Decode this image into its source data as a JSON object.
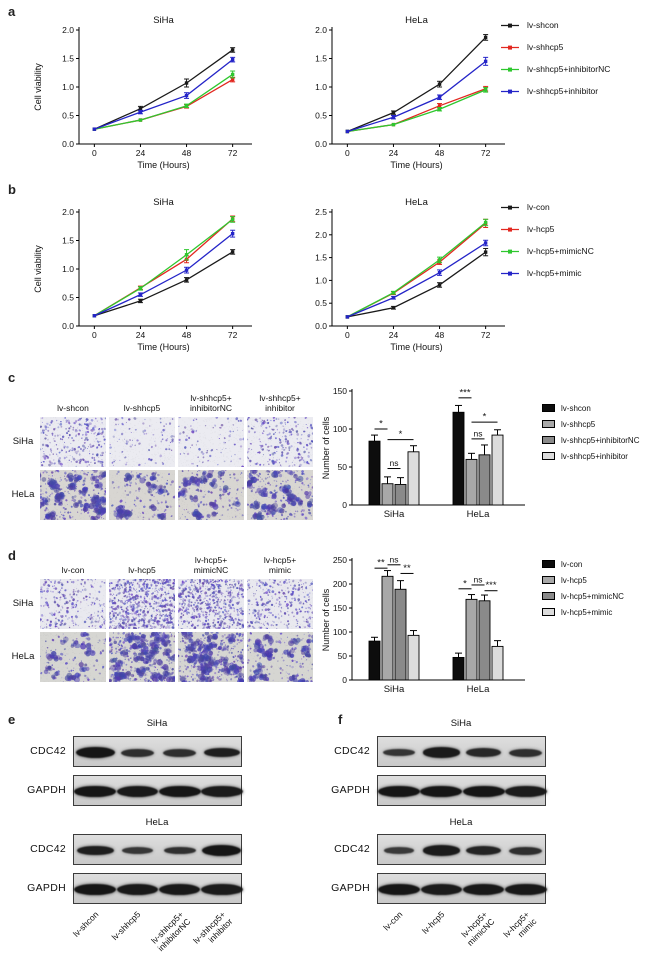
{
  "panels": {
    "a": {
      "label": "a"
    },
    "b": {
      "label": "b"
    },
    "c": {
      "label": "c"
    },
    "d": {
      "label": "d"
    },
    "e": {
      "label": "e"
    },
    "f": {
      "label": "f"
    }
  },
  "chart_data": [
    {
      "id": "a_siha",
      "type": "line",
      "title": "SiHa",
      "xlabel": "Time (Hours)",
      "ylabel": "Cell viability",
      "x": [
        0,
        24,
        48,
        72
      ],
      "xlim": [
        -8,
        80
      ],
      "ylim": [
        0,
        2.0
      ],
      "yticks": [
        0.0,
        0.5,
        1.0,
        1.5,
        2.0
      ],
      "series": [
        {
          "name": "lv-shcon",
          "color": "#1a1a1a",
          "values": [
            0.26,
            0.62,
            1.07,
            1.65
          ],
          "err": [
            0.02,
            0.04,
            0.07,
            0.04
          ]
        },
        {
          "name": "lv-shhcp5",
          "color": "#e22820",
          "values": [
            0.26,
            0.42,
            0.66,
            1.13
          ],
          "err": [
            0.02,
            0.02,
            0.03,
            0.04
          ]
        },
        {
          "name": "lv-shhcp5+inhibitorNC",
          "color": "#2ec72e",
          "values": [
            0.26,
            0.42,
            0.67,
            1.22
          ],
          "err": [
            0.02,
            0.02,
            0.03,
            0.06
          ]
        },
        {
          "name": "lv-shhcp5+inhibitor",
          "color": "#2424c8",
          "values": [
            0.26,
            0.56,
            0.85,
            1.48
          ],
          "err": [
            0.02,
            0.03,
            0.05,
            0.04
          ]
        }
      ]
    },
    {
      "id": "a_hela",
      "type": "line",
      "title": "HeLa",
      "xlabel": "Time (Hours)",
      "ylabel": "",
      "x": [
        0,
        24,
        48,
        72
      ],
      "xlim": [
        -8,
        80
      ],
      "ylim": [
        0,
        2.0
      ],
      "yticks": [
        0.0,
        0.5,
        1.0,
        1.5,
        2.0
      ],
      "series": [
        {
          "name": "lv-shcon",
          "color": "#1a1a1a",
          "values": [
            0.22,
            0.55,
            1.05,
            1.87
          ],
          "err": [
            0.02,
            0.03,
            0.05,
            0.05
          ]
        },
        {
          "name": "lv-shhcp5",
          "color": "#e22820",
          "values": [
            0.22,
            0.34,
            0.67,
            0.97
          ],
          "err": [
            0.02,
            0.02,
            0.04,
            0.04
          ]
        },
        {
          "name": "lv-shhcp5+inhibitorNC",
          "color": "#2ec72e",
          "values": [
            0.22,
            0.34,
            0.61,
            0.95
          ],
          "err": [
            0.02,
            0.02,
            0.03,
            0.04
          ]
        },
        {
          "name": "lv-shhcp5+inhibitor",
          "color": "#2424c8",
          "values": [
            0.22,
            0.47,
            0.82,
            1.45
          ],
          "err": [
            0.02,
            0.03,
            0.04,
            0.07
          ]
        }
      ]
    },
    {
      "id": "b_siha",
      "type": "line",
      "title": "SiHa",
      "xlabel": "Time (Hours)",
      "ylabel": "Cell viability",
      "x": [
        0,
        24,
        48,
        72
      ],
      "xlim": [
        -8,
        80
      ],
      "ylim": [
        0,
        2.0
      ],
      "yticks": [
        0.0,
        0.5,
        1.0,
        1.5,
        2.0
      ],
      "series": [
        {
          "name": "lv-con",
          "color": "#1a1a1a",
          "values": [
            0.18,
            0.44,
            0.81,
            1.3
          ],
          "err": [
            0.02,
            0.03,
            0.04,
            0.04
          ]
        },
        {
          "name": "lv-hcp5",
          "color": "#e22820",
          "values": [
            0.18,
            0.67,
            1.17,
            1.88
          ],
          "err": [
            0.02,
            0.03,
            0.06,
            0.05
          ]
        },
        {
          "name": "lv-hcp5+mimicNC",
          "color": "#2ec72e",
          "values": [
            0.18,
            0.66,
            1.25,
            1.87
          ],
          "err": [
            0.02,
            0.03,
            0.09,
            0.05
          ]
        },
        {
          "name": "lv-hcp5+mimic",
          "color": "#2424c8",
          "values": [
            0.18,
            0.55,
            0.98,
            1.62
          ],
          "err": [
            0.02,
            0.03,
            0.05,
            0.06
          ]
        }
      ]
    },
    {
      "id": "b_hela",
      "type": "line",
      "title": "HeLa",
      "xlabel": "Time (Hours)",
      "ylabel": "",
      "x": [
        0,
        24,
        48,
        72
      ],
      "xlim": [
        -8,
        80
      ],
      "ylim": [
        0,
        2.5
      ],
      "yticks": [
        0.0,
        0.5,
        1.0,
        1.5,
        2.0,
        2.5
      ],
      "series": [
        {
          "name": "lv-con",
          "color": "#1a1a1a",
          "values": [
            0.2,
            0.4,
            0.9,
            1.62
          ],
          "err": [
            0.02,
            0.03,
            0.05,
            0.08
          ]
        },
        {
          "name": "lv-hcp5",
          "color": "#e22820",
          "values": [
            0.2,
            0.72,
            1.4,
            2.25
          ],
          "err": [
            0.02,
            0.03,
            0.05,
            0.09
          ]
        },
        {
          "name": "lv-hcp5+mimicNC",
          "color": "#2ec72e",
          "values": [
            0.2,
            0.73,
            1.45,
            2.27
          ],
          "err": [
            0.02,
            0.03,
            0.06,
            0.07
          ]
        },
        {
          "name": "lv-hcp5+mimic",
          "color": "#2424c8",
          "values": [
            0.2,
            0.62,
            1.17,
            1.82
          ],
          "err": [
            0.02,
            0.03,
            0.06,
            0.06
          ]
        }
      ]
    },
    {
      "id": "c_bars",
      "type": "bar",
      "title": "",
      "xlabel": "",
      "ylabel": "Number of cells",
      "categories": [
        "SiHa",
        "HeLa"
      ],
      "ylim": [
        0,
        150
      ],
      "yticks": [
        0,
        50,
        100,
        150
      ],
      "series": [
        {
          "name": "lv-shcon",
          "color": "#0d0d0d",
          "values": [
            84,
            122
          ],
          "err": [
            8,
            9
          ]
        },
        {
          "name": "lv-shhcp5",
          "color": "#a8a8a8",
          "values": [
            28,
            60
          ],
          "err": [
            9,
            8
          ]
        },
        {
          "name": "lv-shhcp5+inhibitorNC",
          "color": "#8a8a8a",
          "values": [
            27,
            66
          ],
          "err": [
            9,
            13
          ]
        },
        {
          "name": "lv-shhcp5+inhibitor",
          "color": "#dcdcdc",
          "values": [
            70,
            92
          ],
          "err": [
            8,
            7
          ]
        }
      ],
      "significance": [
        {
          "cat": 0,
          "from": 0,
          "to": 1,
          "label": "*",
          "y": 100
        },
        {
          "cat": 0,
          "from": 1,
          "to": 2,
          "label": "ns",
          "y": 48
        },
        {
          "cat": 0,
          "from": 1,
          "to": 3,
          "label": "*",
          "y": 86
        },
        {
          "cat": 1,
          "from": 0,
          "to": 1,
          "label": "***",
          "y": 141
        },
        {
          "cat": 1,
          "from": 1,
          "to": 2,
          "label": "ns",
          "y": 87
        },
        {
          "cat": 1,
          "from": 1,
          "to": 3,
          "label": "*",
          "y": 109
        }
      ]
    },
    {
      "id": "d_bars",
      "type": "bar",
      "title": "",
      "xlabel": "",
      "ylabel": "Number of cells",
      "categories": [
        "SiHa",
        "HeLa"
      ],
      "ylim": [
        0,
        250
      ],
      "yticks": [
        0,
        50,
        100,
        150,
        200,
        250
      ],
      "series": [
        {
          "name": "lv-con",
          "color": "#0d0d0d",
          "values": [
            81,
            47
          ],
          "err": [
            8,
            9
          ]
        },
        {
          "name": "lv-hcp5",
          "color": "#a8a8a8",
          "values": [
            216,
            168
          ],
          "err": [
            12,
            10
          ]
        },
        {
          "name": "lv-hcp5+mimicNC",
          "color": "#8a8a8a",
          "values": [
            189,
            165
          ],
          "err": [
            18,
            12
          ]
        },
        {
          "name": "lv-hcp5+mimic",
          "color": "#dcdcdc",
          "values": [
            93,
            70
          ],
          "err": [
            10,
            12
          ]
        }
      ],
      "significance": [
        {
          "cat": 0,
          "from": 0,
          "to": 1,
          "label": "**",
          "y": 233
        },
        {
          "cat": 0,
          "from": 1,
          "to": 2,
          "label": "ns",
          "y": 240
        },
        {
          "cat": 0,
          "from": 2,
          "to": 3,
          "label": "**",
          "y": 222
        },
        {
          "cat": 1,
          "from": 0,
          "to": 1,
          "label": "*",
          "y": 190
        },
        {
          "cat": 1,
          "from": 1,
          "to": 2,
          "label": "ns",
          "y": 198
        },
        {
          "cat": 1,
          "from": 2,
          "to": 3,
          "label": "***",
          "y": 186
        }
      ]
    }
  ],
  "assays": {
    "c": {
      "row_labels": [
        "SiHa",
        "HeLa"
      ],
      "col_labels": [
        "lv-shcon",
        "lv-shhcp5",
        "lv-shhcp5+\ninhibitorNC",
        "lv-shhcp5+\ninhibitor"
      ],
      "cell_counts": [
        [
          84,
          28,
          27,
          70
        ],
        [
          122,
          60,
          66,
          92
        ]
      ],
      "row_styles": [
        "sparse",
        "blob"
      ],
      "row_bg": [
        "#ebebf1",
        "#d8d6d2"
      ],
      "stain_color": "#4b48b8"
    },
    "d": {
      "row_labels": [
        "SiHa",
        "HeLa"
      ],
      "col_labels": [
        "lv-con",
        "lv-hcp5",
        "lv-hcp5+\nmimicNC",
        "lv-hcp5+\nmimic"
      ],
      "cell_counts": [
        [
          81,
          216,
          189,
          93
        ],
        [
          47,
          168,
          165,
          70
        ]
      ],
      "row_styles": [
        "sparse",
        "blob"
      ],
      "row_bg": [
        "#e9e9ef",
        "#d6d6d2"
      ],
      "stain_color": "#4b48b8"
    }
  },
  "blots": {
    "e": {
      "groups": [
        {
          "title": "SiHa",
          "rows": [
            {
              "label": "CDC42",
              "bands": [
                1.0,
                0.6,
                0.6,
                0.85
              ]
            },
            {
              "label": "GAPDH",
              "bands": [
                1.0,
                0.95,
                1.0,
                0.9
              ]
            }
          ]
        },
        {
          "title": "HeLa",
          "rows": [
            {
              "label": "CDC42",
              "bands": [
                0.85,
                0.45,
                0.55,
                1.0
              ]
            },
            {
              "label": "GAPDH",
              "bands": [
                1.0,
                0.95,
                0.95,
                0.9
              ]
            }
          ]
        }
      ],
      "lane_labels": [
        "lv-shcon",
        "lv-shhcp5",
        "lv-shhcp5+\ninhibitorNC",
        "lv-shhcp5+\ninhibitor"
      ]
    },
    "f": {
      "groups": [
        {
          "title": "SiHa",
          "rows": [
            {
              "label": "CDC42",
              "bands": [
                0.5,
                0.9,
                0.7,
                0.6
              ]
            },
            {
              "label": "GAPDH",
              "bands": [
                1.0,
                1.0,
                1.0,
                0.9
              ]
            }
          ]
        },
        {
          "title": "HeLa",
          "rows": [
            {
              "label": "CDC42",
              "bands": [
                0.4,
                0.9,
                0.75,
                0.6
              ]
            },
            {
              "label": "GAPDH",
              "bands": [
                1.0,
                0.9,
                0.95,
                0.95
              ]
            }
          ]
        }
      ],
      "lane_labels": [
        "lv-con",
        "lv-hcp5",
        "lv-hcp5+\nmimicNC",
        "lv-hcp5+\nmimic"
      ]
    }
  }
}
